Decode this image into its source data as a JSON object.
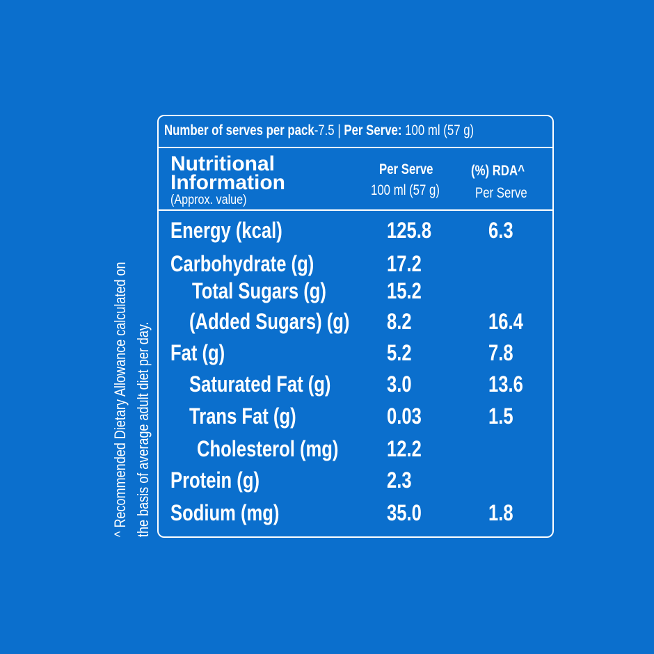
{
  "footnote": {
    "lines": [
      "^ Recommended Dietary Allowance calculated on",
      "the basis of average adult diet per day."
    ]
  },
  "serving_info": {
    "serves_label": "Number of serves per pack",
    "serves_value": "-7.5",
    "separator": "|",
    "per_serve_label": "Per Serve:",
    "per_serve_value": "100 ml (57 g)"
  },
  "table": {
    "header": {
      "title_line1": "Nutritional",
      "title_line2": "Information",
      "title_note": "(Approx. value)",
      "col1_title": "Per Serve",
      "col1_sub": "100 ml (57 g)",
      "col2_title": "(%) RDA^",
      "col2_sub": "Per Serve"
    },
    "rows": [
      [
        "Energy (kcal)",
        "125.8",
        "6.3"
      ],
      [
        "Carbohydrate (g)",
        "17.2",
        null
      ],
      [
        "Total Sugars (g)",
        "15.2",
        null
      ],
      [
        "(Added Sugars) (g)",
        "8.2",
        "16.4"
      ],
      [
        "Fat (g)",
        "5.2",
        "7.8"
      ],
      [
        "Saturated Fat (g)",
        "3.0",
        "13.6"
      ],
      [
        "Trans Fat (g)",
        "0.03",
        "1.5"
      ],
      [
        "Cholesterol (mg)",
        "12.2",
        null
      ],
      [
        "Protein (g)",
        "2.3",
        null
      ],
      [
        "Sodium (mg)",
        "35.0",
        "1.8"
      ]
    ]
  }
}
